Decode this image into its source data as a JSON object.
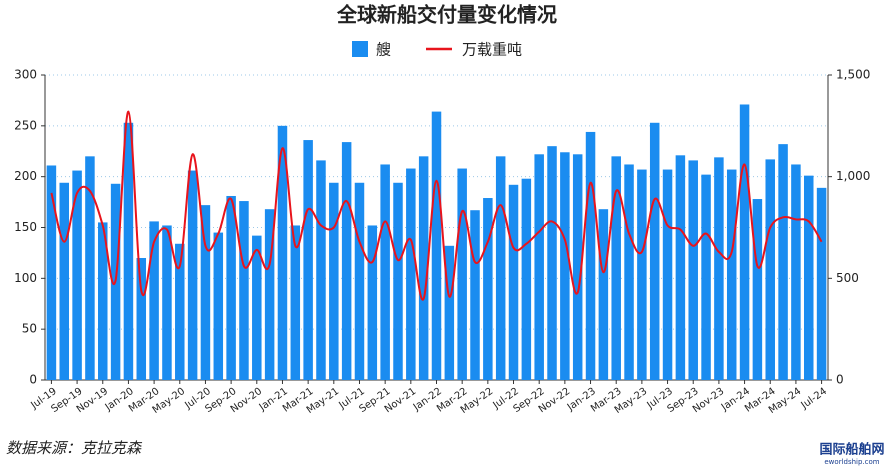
{
  "chart_data": {
    "type": "bar-line",
    "title": "全球新船交付量变化情况",
    "categories": [
      "Jul-19",
      null,
      "Sep-19",
      null,
      "Nov-19",
      null,
      "Jan-20",
      null,
      "Mar-20",
      null,
      "May-20",
      null,
      "Jul-20",
      null,
      "Sep-20",
      null,
      "Nov-20",
      null,
      "Jan-21",
      null,
      "Mar-21",
      null,
      "May-21",
      null,
      "Jul-21",
      null,
      "Sep-21",
      null,
      "Nov-21",
      null,
      "Jan-22",
      null,
      "Mar-22",
      null,
      "May-22",
      null,
      "Jul-22",
      null,
      "Sep-22",
      null,
      "Nov-22",
      null,
      "Jan-23",
      null,
      "Mar-23",
      null,
      "May-23",
      null,
      "Jul-23",
      null,
      "Sep-23",
      null,
      "Nov-23",
      null,
      "Jan-24",
      null,
      "Mar-24",
      null,
      "May-24",
      null,
      "Jul-24"
    ],
    "series": [
      {
        "name": "艘",
        "color": "#1a8cf0",
        "type": "bar",
        "values": [
          211,
          194,
          206,
          220,
          155,
          193,
          253,
          120,
          156,
          152,
          134,
          206,
          172,
          145,
          181,
          176,
          142,
          168,
          250,
          152,
          236,
          216,
          194,
          234,
          194,
          152,
          212,
          194,
          208,
          220,
          264,
          132,
          208,
          167,
          179,
          220,
          192,
          198,
          222,
          230,
          224,
          222,
          244,
          168,
          220,
          212,
          207,
          253,
          207,
          221,
          216,
          202,
          219,
          207,
          271,
          178,
          217,
          232,
          212,
          201,
          189
        ]
      },
      {
        "name": "万载重吨",
        "color": "#e8141c",
        "type": "line",
        "axis": "y2",
        "values": [
          920,
          680,
          920,
          930,
          760,
          490,
          1320,
          440,
          680,
          740,
          560,
          1110,
          660,
          720,
          890,
          560,
          640,
          570,
          1140,
          660,
          840,
          760,
          750,
          880,
          680,
          580,
          780,
          590,
          690,
          400,
          980,
          410,
          830,
          580,
          680,
          860,
          650,
          670,
          730,
          780,
          690,
          430,
          970,
          530,
          930,
          720,
          630,
          890,
          760,
          740,
          660,
          720,
          630,
          630,
          1060,
          560,
          750,
          800,
          790,
          780,
          680
        ]
      }
    ],
    "ylim": [
      0,
      300
    ],
    "yticks": [
      0,
      50,
      100,
      150,
      200,
      250,
      300
    ],
    "y2lim": [
      0,
      1500
    ],
    "y2ticks": [
      0,
      500,
      {
        "value": 1000,
        "label": "1,000"
      },
      {
        "value": 1500,
        "label": "1,500"
      }
    ],
    "grid": true,
    "legend": "top",
    "source": "数据来源：克拉克森",
    "watermark": "国际船舶网",
    "watermark_url": "eworldship.com"
  }
}
